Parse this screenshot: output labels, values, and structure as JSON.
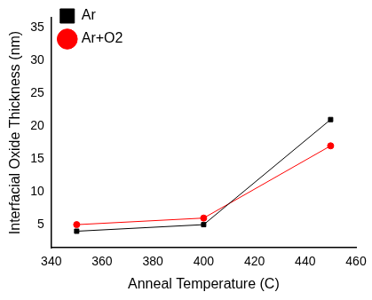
{
  "chart_data": {
    "type": "line",
    "x_label": "Anneal Temperature (C)",
    "y_label": "Interfacial Oxide Thickness (nm)",
    "x": [
      350,
      400,
      450
    ],
    "series": [
      {
        "name": "Ar",
        "color": "#000000",
        "marker": "square",
        "line_style": "solid",
        "values": [
          4,
          5,
          21
        ]
      },
      {
        "name": "Ar+O2",
        "color": "#ff0000",
        "marker": "circle",
        "line_style": "solid",
        "values": [
          5,
          6,
          17
        ]
      }
    ],
    "xlim": [
      340,
      460
    ],
    "xticks": [
      340,
      360,
      380,
      400,
      420,
      440,
      460
    ],
    "ylim": [
      1.5,
      36.5
    ],
    "yticks": [
      5,
      10,
      15,
      20,
      25,
      30,
      35
    ],
    "grid": false,
    "legend": "upper left"
  }
}
